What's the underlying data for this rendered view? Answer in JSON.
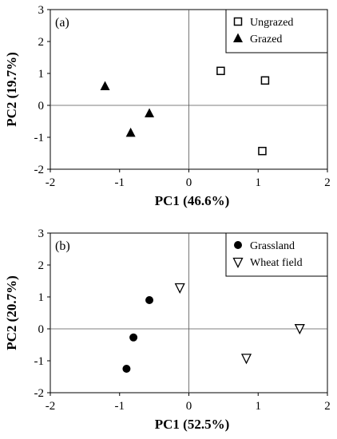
{
  "chart_data": [
    {
      "type": "scatter",
      "panel_label": "(a)",
      "xlabel": "PC1 (46.6%)",
      "ylabel": "PC2 (19.7%)",
      "xlim": [
        -2,
        2
      ],
      "ylim": [
        -2,
        3
      ],
      "xticks": [
        -2,
        -1,
        0,
        1,
        2
      ],
      "yticks": [
        -2,
        -1,
        0,
        1,
        2,
        3
      ],
      "reference_lines": {
        "x": 0,
        "y": 0
      },
      "grid": false,
      "legend_position": "top-right",
      "series": [
        {
          "name": "Ungrazed",
          "marker": "open-square",
          "points": [
            [
              0.46,
              1.08
            ],
            [
              1.1,
              0.78
            ],
            [
              1.06,
              -1.43
            ]
          ]
        },
        {
          "name": "Grazed",
          "marker": "filled-triangle-up",
          "points": [
            [
              -1.21,
              0.6
            ],
            [
              -0.57,
              -0.25
            ],
            [
              -0.84,
              -0.86
            ]
          ]
        }
      ]
    },
    {
      "type": "scatter",
      "panel_label": "(b)",
      "xlabel": "PC1 (52.5%)",
      "ylabel": "PC2 (20.7%)",
      "xlim": [
        -2,
        2
      ],
      "ylim": [
        -2,
        3
      ],
      "xticks": [
        -2,
        -1,
        0,
        1,
        2
      ],
      "yticks": [
        -2,
        -1,
        0,
        1,
        2,
        3
      ],
      "reference_lines": {
        "x": 0,
        "y": 0
      },
      "grid": false,
      "legend_position": "top-right",
      "series": [
        {
          "name": "Grassland",
          "marker": "filled-circle",
          "points": [
            [
              -0.57,
              0.9
            ],
            [
              -0.8,
              -0.27
            ],
            [
              -0.9,
              -1.25
            ]
          ]
        },
        {
          "name": "Wheat field",
          "marker": "open-triangle-down",
          "points": [
            [
              -0.13,
              1.3
            ],
            [
              1.6,
              0.02
            ],
            [
              0.83,
              -0.91
            ]
          ]
        }
      ]
    }
  ]
}
